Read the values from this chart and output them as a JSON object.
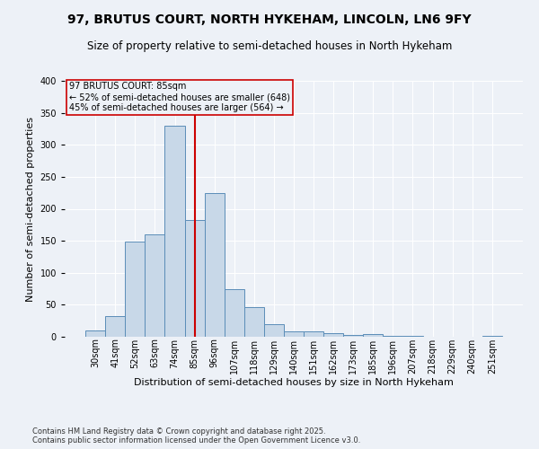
{
  "title": "97, BRUTUS COURT, NORTH HYKEHAM, LINCOLN, LN6 9FY",
  "subtitle": "Size of property relative to semi-detached houses in North Hykeham",
  "xlabel": "Distribution of semi-detached houses by size in North Hykeham",
  "ylabel": "Number of semi-detached properties",
  "footer_line1": "Contains HM Land Registry data © Crown copyright and database right 2025.",
  "footer_line2": "Contains public sector information licensed under the Open Government Licence v3.0.",
  "bin_labels": [
    "30sqm",
    "41sqm",
    "52sqm",
    "63sqm",
    "74sqm",
    "85sqm",
    "96sqm",
    "107sqm",
    "118sqm",
    "129sqm",
    "140sqm",
    "151sqm",
    "162sqm",
    "173sqm",
    "185sqm",
    "196sqm",
    "207sqm",
    "218sqm",
    "229sqm",
    "240sqm",
    "251sqm"
  ],
  "bin_values": [
    10,
    32,
    149,
    160,
    330,
    183,
    224,
    74,
    46,
    19,
    8,
    8,
    6,
    3,
    4,
    1,
    1,
    0,
    0,
    0,
    1
  ],
  "bar_color": "#c8d8e8",
  "bar_edge_color": "#5b8db8",
  "property_line_index": 5,
  "annotation_title": "97 BRUTUS COURT: 85sqm",
  "annotation_line2": "← 52% of semi-detached houses are smaller (648)",
  "annotation_line3": "45% of semi-detached houses are larger (564) →",
  "vline_color": "#cc0000",
  "ylim": [
    0,
    400
  ],
  "yticks": [
    0,
    50,
    100,
    150,
    200,
    250,
    300,
    350,
    400
  ],
  "background_color": "#edf1f7",
  "grid_color": "#ffffff",
  "title_fontsize": 10,
  "subtitle_fontsize": 8.5,
  "ylabel_fontsize": 8,
  "xlabel_fontsize": 8,
  "tick_fontsize": 7,
  "footer_fontsize": 6,
  "annotation_fontsize": 7
}
